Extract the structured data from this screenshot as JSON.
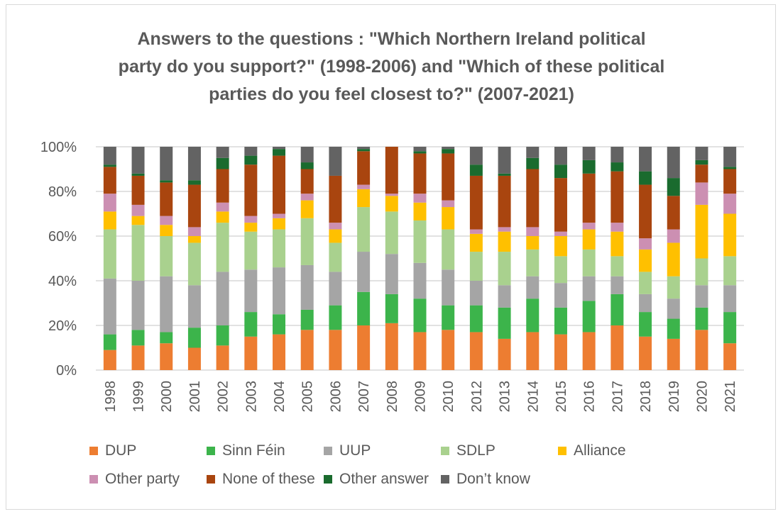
{
  "chart_data": {
    "type": "bar",
    "stacked": true,
    "normalized": true,
    "title": [
      "Answers to the questions : \"Which Northern Ireland political",
      "party do you support?\" (1998-2006) and \"Which of these political",
      "parties do you feel closest to?\" (2007-2021)"
    ],
    "xlabel": "",
    "ylabel": "",
    "ylim": [
      0,
      100
    ],
    "yticks": [
      "0%",
      "20%",
      "40%",
      "60%",
      "80%",
      "100%"
    ],
    "grid": true,
    "legend_position": "bottom",
    "categories": [
      "1998",
      "1999",
      "2000",
      "2001",
      "2002",
      "2003",
      "2004",
      "2005",
      "2006",
      "2007",
      "2008",
      "2009",
      "2010",
      "2012",
      "2013",
      "2014",
      "2015",
      "2016",
      "2017",
      "2018",
      "2019",
      "2020",
      "2021"
    ],
    "series": [
      {
        "name": "DUP",
        "color": "#ed7d31",
        "values": [
          9,
          11,
          12,
          10,
          11,
          15,
          16,
          18,
          18,
          20,
          21,
          17,
          18,
          17,
          14,
          17,
          16,
          17,
          20,
          15,
          14,
          18,
          12
        ]
      },
      {
        "name": "Sinn Féin",
        "color": "#3cb44b",
        "values": [
          7,
          7,
          5,
          9,
          9,
          11,
          9,
          9,
          11,
          15,
          13,
          15,
          11,
          12,
          14,
          15,
          12,
          14,
          14,
          11,
          9,
          10,
          14
        ]
      },
      {
        "name": "UUP",
        "color": "#a5a5a5",
        "values": [
          25,
          22,
          25,
          19,
          24,
          19,
          21,
          20,
          15,
          18,
          18,
          16,
          16,
          11,
          10,
          10,
          11,
          11,
          8,
          8,
          9,
          10,
          12
        ]
      },
      {
        "name": "SDLP",
        "color": "#a9d18e",
        "values": [
          22,
          25,
          18,
          19,
          22,
          17,
          17,
          21,
          13,
          20,
          19,
          19,
          18,
          13,
          15,
          12,
          12,
          12,
          9,
          10,
          10,
          12,
          13
        ]
      },
      {
        "name": "Alliance",
        "color": "#ffc000",
        "values": [
          8,
          4,
          5,
          3,
          5,
          4,
          5,
          8,
          6,
          8,
          7,
          8,
          10,
          8,
          9,
          6,
          9,
          9,
          11,
          10,
          15,
          24,
          19
        ]
      },
      {
        "name": "Other party",
        "color": "#cc8fb2",
        "values": [
          8,
          5,
          4,
          4,
          4,
          3,
          2,
          3,
          3,
          2,
          1,
          4,
          3,
          2,
          2,
          4,
          2,
          3,
          4,
          5,
          6,
          10,
          9
        ]
      },
      {
        "name": "None of these",
        "color": "#a9450f",
        "values": [
          12,
          13,
          15,
          19,
          15,
          23,
          26,
          11,
          21,
          15,
          21,
          18,
          21,
          24,
          23,
          26,
          24,
          22,
          23,
          24,
          15,
          8,
          11
        ]
      },
      {
        "name": "Other answer",
        "color": "#1a6b2e",
        "values": [
          1,
          1,
          1,
          2,
          5,
          4,
          3,
          3,
          0,
          1,
          0,
          1,
          2,
          5,
          1,
          5,
          6,
          6,
          4,
          6,
          8,
          2,
          1
        ]
      },
      {
        "name": "Don’t know",
        "color": "#636363",
        "values": [
          8,
          12,
          15,
          15,
          5,
          4,
          1,
          7,
          13,
          1,
          0,
          2,
          1,
          8,
          12,
          5,
          8,
          6,
          7,
          11,
          14,
          6,
          9
        ]
      }
    ]
  }
}
